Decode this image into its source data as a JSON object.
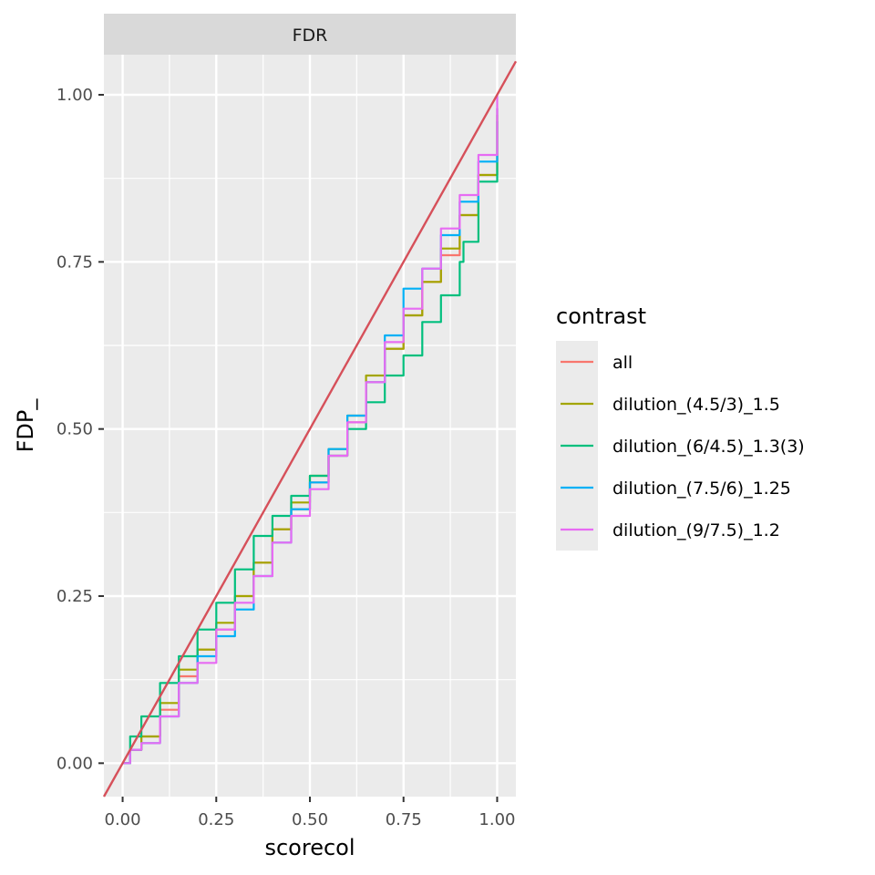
{
  "chart_data": {
    "type": "line",
    "facet": "FDR",
    "xlabel": "scorecol",
    "ylabel": "FDP_",
    "xlim": [
      -0.05,
      1.05
    ],
    "ylim": [
      -0.05,
      1.06
    ],
    "x_ticks": [
      "0.00",
      "0.25",
      "0.50",
      "0.75",
      "1.00"
    ],
    "y_ticks": [
      "0.00",
      "0.25",
      "0.50",
      "0.75",
      "1.00"
    ],
    "grid": true,
    "legend": {
      "title": "contrast",
      "placement": "right"
    },
    "reference_line": {
      "slope": 1,
      "intercept": 0,
      "color": "#d6505a"
    },
    "series": [
      {
        "name": "all",
        "color": "#f8766d",
        "x": [
          0,
          0.02,
          0.05,
          0.1,
          0.15,
          0.2,
          0.25,
          0.3,
          0.35,
          0.4,
          0.45,
          0.5,
          0.55,
          0.6,
          0.65,
          0.7,
          0.75,
          0.8,
          0.85,
          0.9,
          0.95,
          1.0
        ],
        "y": [
          0,
          0.02,
          0.04,
          0.08,
          0.13,
          0.17,
          0.2,
          0.25,
          0.3,
          0.35,
          0.38,
          0.42,
          0.46,
          0.51,
          0.57,
          0.62,
          0.67,
          0.72,
          0.76,
          0.82,
          0.88,
          0.98
        ]
      },
      {
        "name": "dilution_(4.5/3)_1.5",
        "color": "#a3a500",
        "x": [
          0,
          0.02,
          0.05,
          0.1,
          0.15,
          0.2,
          0.25,
          0.3,
          0.35,
          0.4,
          0.45,
          0.5,
          0.55,
          0.6,
          0.65,
          0.7,
          0.75,
          0.8,
          0.85,
          0.9,
          0.95,
          1.0
        ],
        "y": [
          0,
          0.02,
          0.04,
          0.09,
          0.14,
          0.17,
          0.21,
          0.25,
          0.3,
          0.35,
          0.39,
          0.43,
          0.47,
          0.52,
          0.58,
          0.62,
          0.67,
          0.72,
          0.77,
          0.82,
          0.88,
          0.97
        ]
      },
      {
        "name": "dilution_(6/4.5)_1.3(3)",
        "color": "#00bf7d",
        "x": [
          0,
          0.02,
          0.05,
          0.1,
          0.15,
          0.2,
          0.25,
          0.3,
          0.35,
          0.4,
          0.45,
          0.5,
          0.55,
          0.6,
          0.65,
          0.7,
          0.75,
          0.8,
          0.85,
          0.9,
          0.91,
          0.95,
          1.0
        ],
        "y": [
          0,
          0.04,
          0.07,
          0.12,
          0.16,
          0.2,
          0.24,
          0.29,
          0.34,
          0.37,
          0.4,
          0.43,
          0.46,
          0.5,
          0.54,
          0.58,
          0.61,
          0.66,
          0.7,
          0.75,
          0.78,
          0.87,
          0.96
        ]
      },
      {
        "name": "dilution_(7.5/6)_1.25",
        "color": "#00b0f6",
        "x": [
          0,
          0.02,
          0.05,
          0.1,
          0.15,
          0.2,
          0.25,
          0.3,
          0.35,
          0.4,
          0.45,
          0.5,
          0.55,
          0.6,
          0.65,
          0.7,
          0.75,
          0.8,
          0.85,
          0.9,
          0.95,
          1.0
        ],
        "y": [
          0,
          0.02,
          0.03,
          0.07,
          0.12,
          0.16,
          0.19,
          0.23,
          0.28,
          0.33,
          0.38,
          0.42,
          0.47,
          0.52,
          0.57,
          0.64,
          0.71,
          0.74,
          0.79,
          0.84,
          0.9,
          0.98
        ]
      },
      {
        "name": "dilution_(9/7.5)_1.2",
        "color": "#e76bf3",
        "x": [
          0,
          0.02,
          0.05,
          0.1,
          0.15,
          0.2,
          0.25,
          0.3,
          0.35,
          0.4,
          0.45,
          0.5,
          0.55,
          0.6,
          0.65,
          0.7,
          0.75,
          0.8,
          0.85,
          0.9,
          0.95,
          1.0
        ],
        "y": [
          0,
          0.02,
          0.03,
          0.07,
          0.12,
          0.15,
          0.2,
          0.24,
          0.28,
          0.33,
          0.37,
          0.41,
          0.46,
          0.51,
          0.57,
          0.63,
          0.68,
          0.74,
          0.8,
          0.85,
          0.91,
          1.0
        ]
      }
    ]
  }
}
